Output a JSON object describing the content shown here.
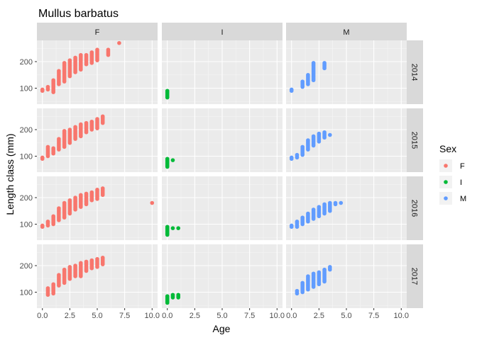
{
  "chart_data": {
    "type": "scatter",
    "title": "Mullus barbatus",
    "xlabel": "Age",
    "ylabel": "Length class (mm)",
    "xlim": [
      -0.5,
      10.5
    ],
    "ylim": [
      40,
      280
    ],
    "x_ticks": [
      0,
      2.5,
      5,
      7.5,
      10
    ],
    "x_tick_labels": [
      "0.0",
      "2.5",
      "5.0",
      "7.5",
      "10.0"
    ],
    "y_ticks": [
      100,
      200
    ],
    "y_tick_labels": [
      "100",
      "200"
    ],
    "grid": true,
    "facet_columns": [
      "F",
      "I",
      "M"
    ],
    "facet_rows": [
      "2014",
      "2015",
      "2016",
      "2017"
    ],
    "legend": {
      "title": "Sex",
      "position": "right",
      "items": [
        {
          "label": "F",
          "color": "#F8766D"
        },
        {
          "label": "I",
          "color": "#00BA38"
        },
        {
          "label": "M",
          "color": "#619CFF"
        }
      ]
    },
    "series": [
      {
        "name": "F",
        "color": "#F8766D",
        "panels": {
          "2014": [
            [
              0,
              90,
              95
            ],
            [
              0.5,
              95,
              105
            ],
            [
              1,
              85,
              130
            ],
            [
              1.5,
              115,
              165
            ],
            [
              2,
              125,
              195
            ],
            [
              2.5,
              145,
              205
            ],
            [
              3,
              160,
              215
            ],
            [
              3.5,
              170,
              225
            ],
            [
              4,
              190,
              225
            ],
            [
              4.5,
              195,
              235
            ],
            [
              5,
              205,
              245
            ],
            [
              6,
              225,
              245
            ],
            [
              7,
              270,
              270
            ]
          ],
          "2015": [
            [
              0,
              90,
              95
            ],
            [
              0.5,
              100,
              135
            ],
            [
              1,
              110,
              130
            ],
            [
              1.5,
              125,
              165
            ],
            [
              2,
              135,
              195
            ],
            [
              2.5,
              150,
              200
            ],
            [
              3,
              165,
              210
            ],
            [
              3.5,
              175,
              220
            ],
            [
              4,
              190,
              225
            ],
            [
              4.5,
              200,
              230
            ],
            [
              5,
              205,
              240
            ],
            [
              5.5,
              225,
              250
            ]
          ],
          "2016": [
            [
              0,
              90,
              95
            ],
            [
              0.5,
              95,
              110
            ],
            [
              1,
              100,
              130
            ],
            [
              1.5,
              115,
              160
            ],
            [
              2,
              125,
              180
            ],
            [
              2.5,
              140,
              190
            ],
            [
              3,
              155,
              200
            ],
            [
              3.5,
              165,
              210
            ],
            [
              4,
              175,
              215
            ],
            [
              4.5,
              190,
              220
            ],
            [
              5,
              195,
              230
            ],
            [
              5.5,
              210,
              235
            ],
            [
              10,
              180,
              180
            ]
          ],
          "2017": [
            [
              0.5,
              90,
              115
            ],
            [
              1,
              95,
              130
            ],
            [
              1.5,
              125,
              165
            ],
            [
              2,
              135,
              185
            ],
            [
              2.5,
              150,
              195
            ],
            [
              3,
              160,
              200
            ],
            [
              3.5,
              160,
              210
            ],
            [
              4,
              180,
              215
            ],
            [
              4.5,
              190,
              220
            ],
            [
              5,
              195,
              225
            ],
            [
              5.5,
              205,
              230
            ]
          ]
        }
      },
      {
        "name": "I",
        "color": "#00BA38",
        "panels": {
          "2014": [
            [
              0,
              65,
              90
            ]
          ],
          "2015": [
            [
              0,
              60,
              90
            ],
            [
              0.5,
              85,
              85
            ]
          ],
          "2016": [
            [
              0,
              60,
              90
            ],
            [
              0.5,
              85,
              85
            ],
            [
              1,
              85,
              85
            ]
          ],
          "2017": [
            [
              0,
              60,
              85
            ],
            [
              0.5,
              80,
              90
            ],
            [
              1,
              80,
              90
            ]
          ]
        }
      },
      {
        "name": "M",
        "color": "#619CFF",
        "panels": {
          "2014": [
            [
              0,
              90,
              95
            ],
            [
              1,
              105,
              125
            ],
            [
              1.5,
              115,
              150
            ],
            [
              2,
              130,
              195
            ],
            [
              3,
              175,
              195
            ]
          ],
          "2015": [
            [
              0,
              90,
              95
            ],
            [
              0.5,
              95,
              105
            ],
            [
              1,
              105,
              135
            ],
            [
              1.5,
              125,
              160
            ],
            [
              2,
              140,
              175
            ],
            [
              2.5,
              155,
              185
            ],
            [
              3,
              170,
              190
            ],
            [
              3.5,
              180,
              180
            ]
          ],
          "2016": [
            [
              0,
              90,
              95
            ],
            [
              0.5,
              90,
              110
            ],
            [
              1,
              100,
              125
            ],
            [
              1.5,
              110,
              140
            ],
            [
              2,
              120,
              155
            ],
            [
              2.5,
              130,
              165
            ],
            [
              3,
              140,
              175
            ],
            [
              3.5,
              150,
              180
            ],
            [
              4,
              175,
              180
            ],
            [
              4.5,
              180,
              180
            ]
          ],
          "2017": [
            [
              0.5,
              95,
              105
            ],
            [
              1,
              100,
              135
            ],
            [
              1.5,
              110,
              160
            ],
            [
              2,
              120,
              170
            ],
            [
              2.5,
              130,
              175
            ],
            [
              3,
              140,
              185
            ],
            [
              3.5,
              185,
              195
            ]
          ]
        }
      }
    ]
  }
}
